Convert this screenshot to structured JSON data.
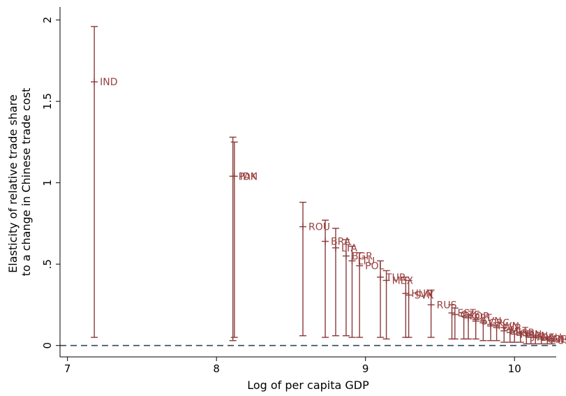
{
  "chart_data": {
    "type": "scatter",
    "subtype": "range-plot-with-labeled-points",
    "xlabel": "Log of per capita  GDP",
    "ylabel_lines": [
      "Elasticity of relative trade share",
      "to a change in Chinese trade cost"
    ],
    "xlim": [
      6.95,
      10.28
    ],
    "ylim": [
      -0.07,
      2.08
    ],
    "xticks": [
      7,
      8,
      9,
      10
    ],
    "xtick_labels": [
      "7",
      "8",
      "9",
      "10"
    ],
    "yticks": [
      0,
      0.5,
      1,
      1.5,
      2
    ],
    "ytick_labels": [
      "0",
      ".5",
      "1",
      "1.5",
      "2"
    ],
    "grid": false,
    "legend": "none",
    "reference_line": {
      "y": 0,
      "style": "dashed",
      "color": "#2f4a5e"
    },
    "colors": {
      "series": "#8b3a3a",
      "labels": "#9b4040"
    },
    "ranges": [
      {
        "x": 7.18,
        "low": 0.05,
        "high": 1.96
      },
      {
        "x": 8.11,
        "low": 0.03,
        "high": 1.28
      },
      {
        "x": 8.12,
        "low": 0.05,
        "high": 1.25
      },
      {
        "x": 8.58,
        "low": 0.06,
        "high": 0.88
      },
      {
        "x": 8.73,
        "low": 0.05,
        "high": 0.77
      },
      {
        "x": 8.8,
        "low": 0.06,
        "high": 0.72
      },
      {
        "x": 8.87,
        "low": 0.06,
        "high": 0.65
      },
      {
        "x": 8.91,
        "low": 0.05,
        "high": 0.61
      },
      {
        "x": 8.96,
        "low": 0.05,
        "high": 0.57
      },
      {
        "x": 9.1,
        "low": 0.05,
        "high": 0.52
      },
      {
        "x": 9.14,
        "low": 0.04,
        "high": 0.46
      },
      {
        "x": 9.27,
        "low": 0.05,
        "high": 0.42
      },
      {
        "x": 9.29,
        "low": 0.05,
        "high": 0.4
      },
      {
        "x": 9.44,
        "low": 0.05,
        "high": 0.34
      },
      {
        "x": 9.58,
        "low": 0.04,
        "high": 0.25
      },
      {
        "x": 9.6,
        "low": 0.04,
        "high": 0.23
      },
      {
        "x": 9.66,
        "low": 0.04,
        "high": 0.2
      },
      {
        "x": 9.69,
        "low": 0.04,
        "high": 0.19
      },
      {
        "x": 9.74,
        "low": 0.04,
        "high": 0.16
      },
      {
        "x": 9.79,
        "low": 0.03,
        "high": 0.15
      },
      {
        "x": 9.84,
        "low": 0.03,
        "high": 0.13
      },
      {
        "x": 9.88,
        "low": 0.03,
        "high": 0.12
      },
      {
        "x": 9.93,
        "low": 0.02,
        "high": 0.11
      },
      {
        "x": 9.97,
        "low": 0.02,
        "high": 0.1
      },
      {
        "x": 10.0,
        "low": 0.02,
        "high": 0.09
      },
      {
        "x": 10.04,
        "low": 0.02,
        "high": 0.08
      },
      {
        "x": 10.08,
        "low": 0.01,
        "high": 0.08
      },
      {
        "x": 10.11,
        "low": 0.01,
        "high": 0.07
      },
      {
        "x": 10.14,
        "low": 0.01,
        "high": 0.06
      },
      {
        "x": 10.18,
        "low": 0.01,
        "high": 0.05
      },
      {
        "x": 10.22,
        "low": 0.01,
        "high": 0.05
      },
      {
        "x": 10.25,
        "low": 0.01,
        "high": 0.04
      }
    ],
    "points": [
      {
        "x": 7.18,
        "y": 1.62,
        "label": "IND"
      },
      {
        "x": 8.11,
        "y": 1.04,
        "label": "PAK"
      },
      {
        "x": 8.12,
        "y": 1.04,
        "label": "IDN"
      },
      {
        "x": 8.58,
        "y": 0.73,
        "label": "ROU"
      },
      {
        "x": 8.73,
        "y": 0.64,
        "label": "BRA"
      },
      {
        "x": 8.8,
        "y": 0.6,
        "label": "LTA"
      },
      {
        "x": 8.87,
        "y": 0.55,
        "label": "BGR"
      },
      {
        "x": 8.91,
        "y": 0.52,
        "label": "LTU"
      },
      {
        "x": 8.96,
        "y": 0.49,
        "label": "POL"
      },
      {
        "x": 9.1,
        "y": 0.42,
        "label": "TUR"
      },
      {
        "x": 9.14,
        "y": 0.4,
        "label": "MEX"
      },
      {
        "x": 9.27,
        "y": 0.32,
        "label": "HUN"
      },
      {
        "x": 9.29,
        "y": 0.31,
        "label": "SVK"
      },
      {
        "x": 9.44,
        "y": 0.25,
        "label": "RUS"
      },
      {
        "x": 9.58,
        "y": 0.2,
        "label": "EST"
      },
      {
        "x": 9.6,
        "y": 0.19,
        "label": "CZE"
      },
      {
        "x": 9.66,
        "y": 0.18,
        "label": "KOR"
      },
      {
        "x": 9.69,
        "y": 0.17,
        "label": "PRT"
      },
      {
        "x": 9.74,
        "y": 0.15,
        "label": "SVN"
      },
      {
        "x": 9.79,
        "y": 0.14,
        "label": "GRC"
      },
      {
        "x": 9.84,
        "y": 0.12,
        "label": "TWN"
      },
      {
        "x": 9.88,
        "y": 0.11,
        "label": "CYP"
      },
      {
        "x": 9.93,
        "y": 0.09,
        "label": "MLT"
      },
      {
        "x": 9.97,
        "y": 0.08,
        "label": "ESP"
      },
      {
        "x": 10.0,
        "y": 0.07,
        "label": "ITA"
      },
      {
        "x": 10.04,
        "y": 0.07,
        "label": "FIN"
      },
      {
        "x": 10.08,
        "y": 0.06,
        "label": "JPN"
      },
      {
        "x": 10.11,
        "y": 0.05,
        "label": "FRA"
      },
      {
        "x": 10.14,
        "y": 0.05,
        "label": "DEU"
      },
      {
        "x": 10.18,
        "y": 0.04,
        "label": "GBR"
      },
      {
        "x": 10.22,
        "y": 0.04,
        "label": "NLD"
      },
      {
        "x": 10.25,
        "y": 0.03,
        "label": "USA"
      }
    ]
  }
}
